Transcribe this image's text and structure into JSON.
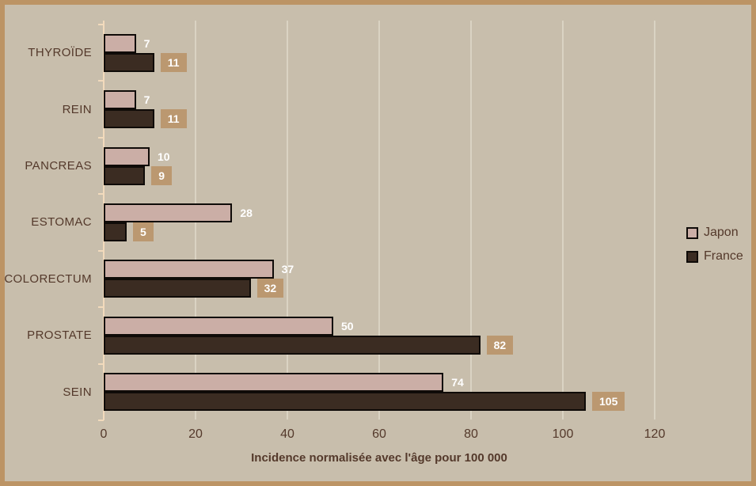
{
  "colors": {
    "frame_border": "#BC9465",
    "background": "#C8BEAC",
    "gridline": "#DAD3C3",
    "axis_line": "#F2DABC",
    "bar_outline": "#0F0B08",
    "value_badge": "#BB9870",
    "value_text": "#FFFFFF",
    "text": "#54392B"
  },
  "chart_data": {
    "type": "bar",
    "orientation": "horizontal",
    "categories": [
      "THYROÏDE",
      "REIN",
      "PANCREAS",
      "ESTOMAC",
      "COLORECTUM",
      "PROSTATE",
      "SEIN"
    ],
    "series": [
      {
        "name": "Japon",
        "color": "#CBAEA6",
        "label_style": "plain",
        "values": [
          7,
          7,
          10,
          28,
          37,
          50,
          74
        ]
      },
      {
        "name": "France",
        "color": "#3B2C22",
        "label_style": "badge",
        "values": [
          11,
          11,
          9,
          5,
          32,
          82,
          105
        ]
      }
    ],
    "xlabel": "Incidence normalisée avec l'âge pour 100 000",
    "xlim": [
      0,
      120
    ],
    "xticks": [
      0,
      20,
      40,
      60,
      80,
      100,
      120
    ],
    "grid": "vertical",
    "legend_position": "right"
  }
}
